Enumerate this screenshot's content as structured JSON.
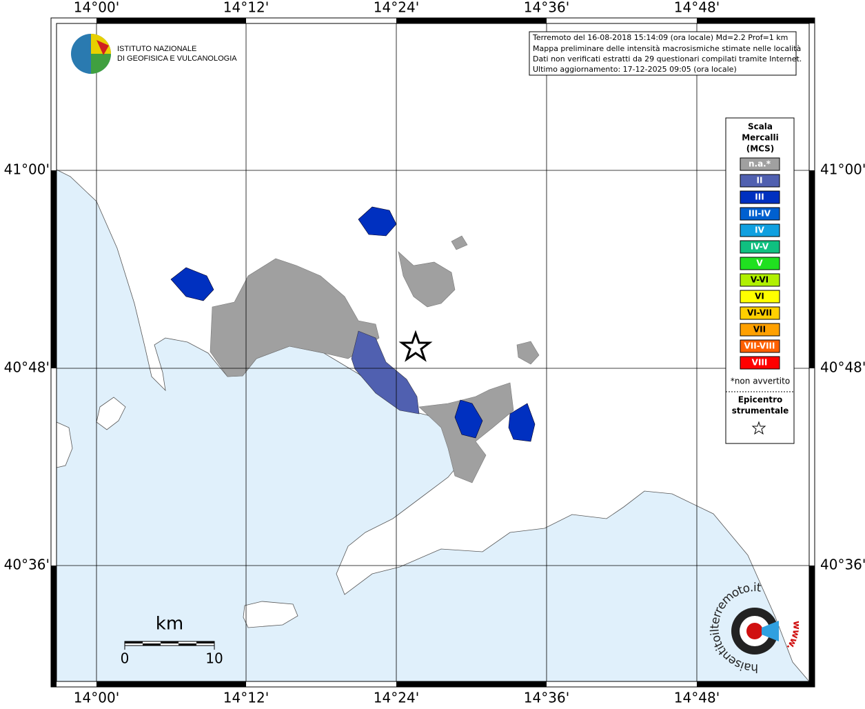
{
  "map": {
    "lon_labels": [
      "14°00'",
      "14°12'",
      "14°24'",
      "14°36'",
      "14°48'"
    ],
    "lat_labels": [
      "41°00'",
      "40°48'",
      "40°36'"
    ]
  },
  "logo": {
    "lines": [
      "ISTITUTO NAZIONALE",
      "DI GEOFISICA E VULCANOLOGIA"
    ]
  },
  "info": {
    "lines": [
      "Terremoto del 16-08-2018 15:14:09 (ora locale) Md=2.2 Prof=1 km",
      "Mappa preliminare delle intensità macrosismiche stimate nelle località",
      "Dati non verificati estratti da 29 questionari compilati tramite Internet.",
      "Ultimo aggiornamento: 17-12-2025 09:05 (ora locale)"
    ]
  },
  "legend": {
    "title": [
      "Scala",
      "Mercalli",
      "(MCS)"
    ],
    "items": [
      {
        "label": "n.a.*",
        "color": "#a0a0a0"
      },
      {
        "label": "II",
        "color": "#5060b0"
      },
      {
        "label": "III",
        "color": "#0030c0"
      },
      {
        "label": "III-IV",
        "color": "#0060d0"
      },
      {
        "label": "IV",
        "color": "#10a0e0"
      },
      {
        "label": "IV-V",
        "color": "#10c080"
      },
      {
        "label": "V",
        "color": "#20e020"
      },
      {
        "label": "V-VI",
        "color": "#b0f000"
      },
      {
        "label": "VI",
        "color": "#ffff00"
      },
      {
        "label": "VI-VII",
        "color": "#ffd000"
      },
      {
        "label": "VII",
        "color": "#ffa000"
      },
      {
        "label": "VII-VIII",
        "color": "#ff6000"
      },
      {
        "label": "VIII",
        "color": "#ff0000"
      }
    ],
    "note": "*non avvertito",
    "epicenter": [
      "Epicentro",
      "strumentale"
    ]
  },
  "scale_bar": {
    "unit": "km",
    "labels": [
      "0",
      "10"
    ]
  },
  "watermark": {
    "text": "haisentitoilterremoto.it",
    "www": "www."
  }
}
